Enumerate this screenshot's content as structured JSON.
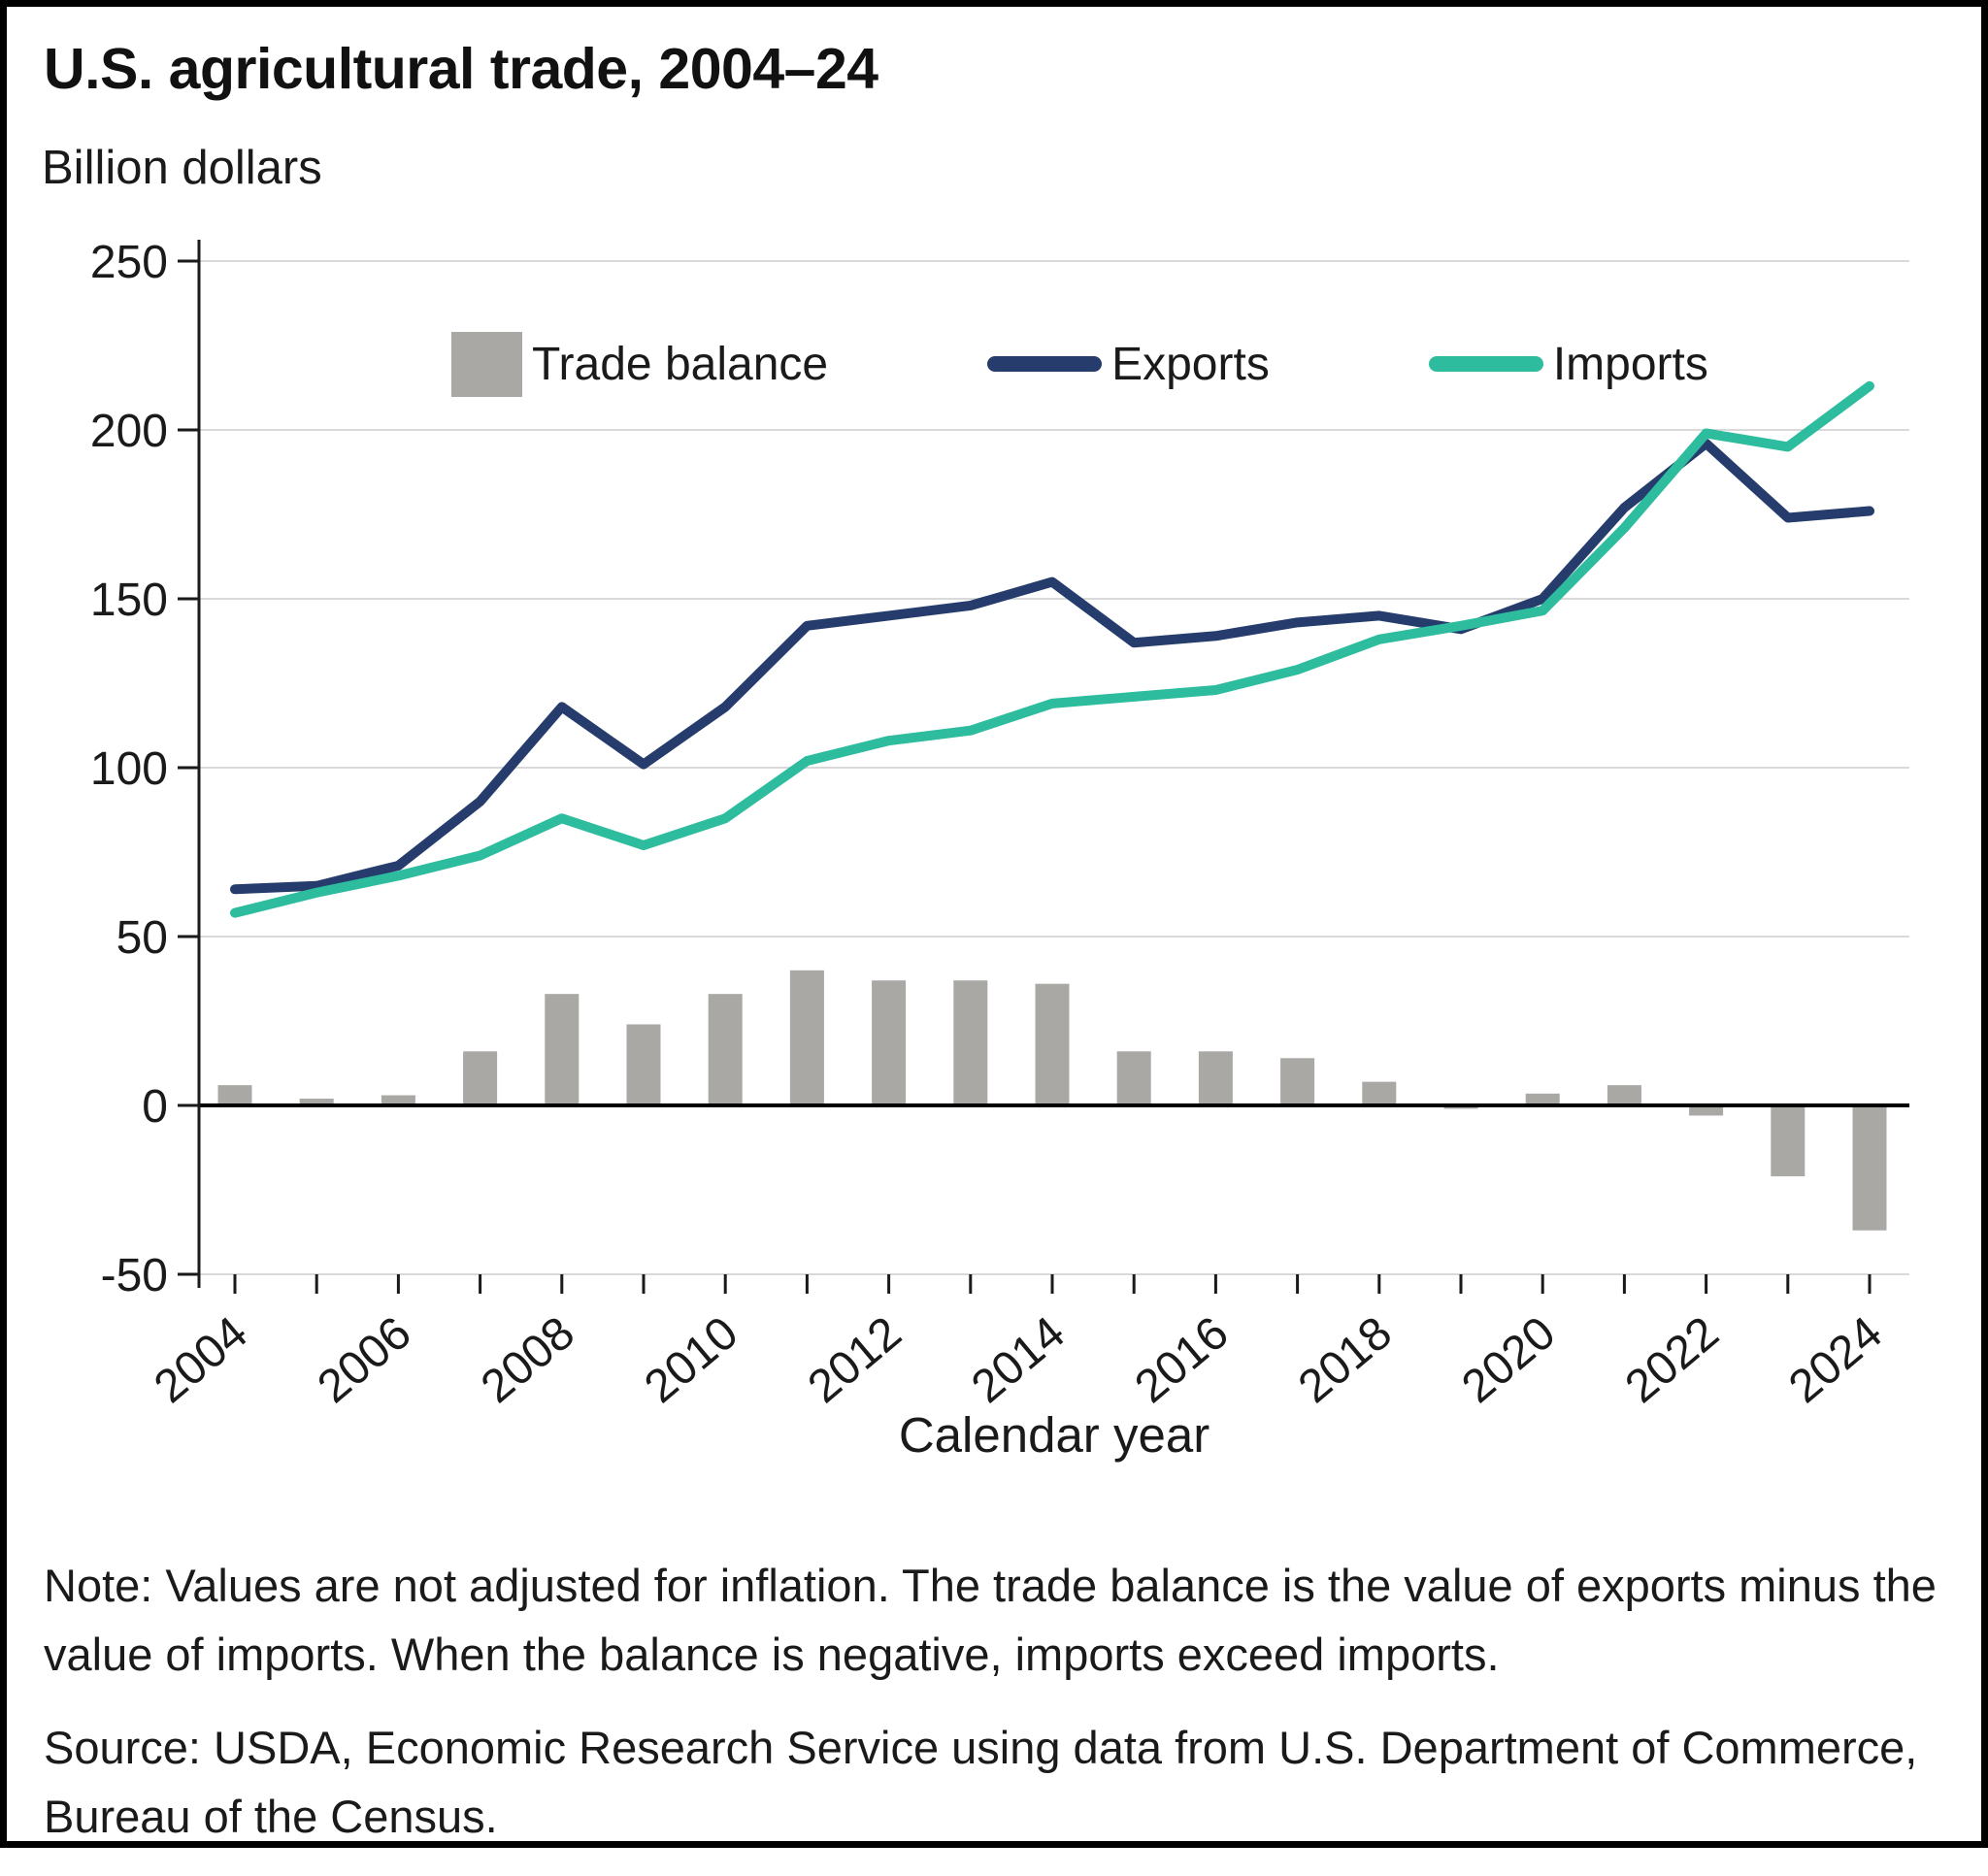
{
  "page": {
    "title": "U.S. agricultural trade, 2004–24",
    "unit_label": "Billion dollars",
    "xlabel": "Calendar year",
    "note": "Note: Values are not adjusted for inflation. The trade balance is the value of exports minus the value of imports. When the balance is negative, imports exceed imports.",
    "source": "Source: USDA, Economic Research Service using data from U.S. Department of Commerce, Bureau of the Census."
  },
  "chart_data": {
    "type": "combo_bar_line",
    "title": "U.S. agricultural trade, 2004–24",
    "xlabel": "Calendar year",
    "ylabel": "Billion dollars",
    "x": [
      2004,
      2005,
      2006,
      2007,
      2008,
      2009,
      2010,
      2011,
      2012,
      2013,
      2014,
      2015,
      2016,
      2017,
      2018,
      2019,
      2020,
      2021,
      2022,
      2023,
      2024
    ],
    "series": [
      {
        "name": "Trade balance",
        "type": "bar",
        "color": "#a9a8a4",
        "values": [
          6,
          2,
          3,
          16,
          33,
          24,
          33,
          40,
          37,
          37,
          36,
          16,
          16,
          14,
          7,
          -1,
          3.5,
          6,
          -3,
          -21,
          -37
        ]
      },
      {
        "name": "Exports",
        "type": "line",
        "color": "#253c6c",
        "values": [
          64,
          65,
          71,
          90,
          118,
          101,
          118,
          142,
          145,
          148,
          155,
          137,
          139,
          143,
          145,
          141,
          150,
          177,
          196,
          174,
          176
        ]
      },
      {
        "name": "Imports",
        "type": "line",
        "color": "#2dbd9e",
        "values": [
          57,
          63,
          68,
          74,
          85,
          77,
          85,
          102,
          108,
          111,
          119,
          121,
          123,
          129,
          138,
          142,
          146.5,
          171,
          199,
          195,
          213
        ]
      }
    ],
    "ylim": [
      -50,
      250
    ],
    "y_ticks": [
      250,
      200,
      150,
      100,
      50,
      0,
      -50
    ],
    "x_tick_labels": [
      2004,
      2006,
      2008,
      2010,
      2012,
      2014,
      2016,
      2018,
      2020,
      2022,
      2024
    ],
    "grid": "horizontal",
    "legend_position": "top-center-inside",
    "axis_color": "#000000",
    "gridline_color": "#d9d9d9"
  }
}
